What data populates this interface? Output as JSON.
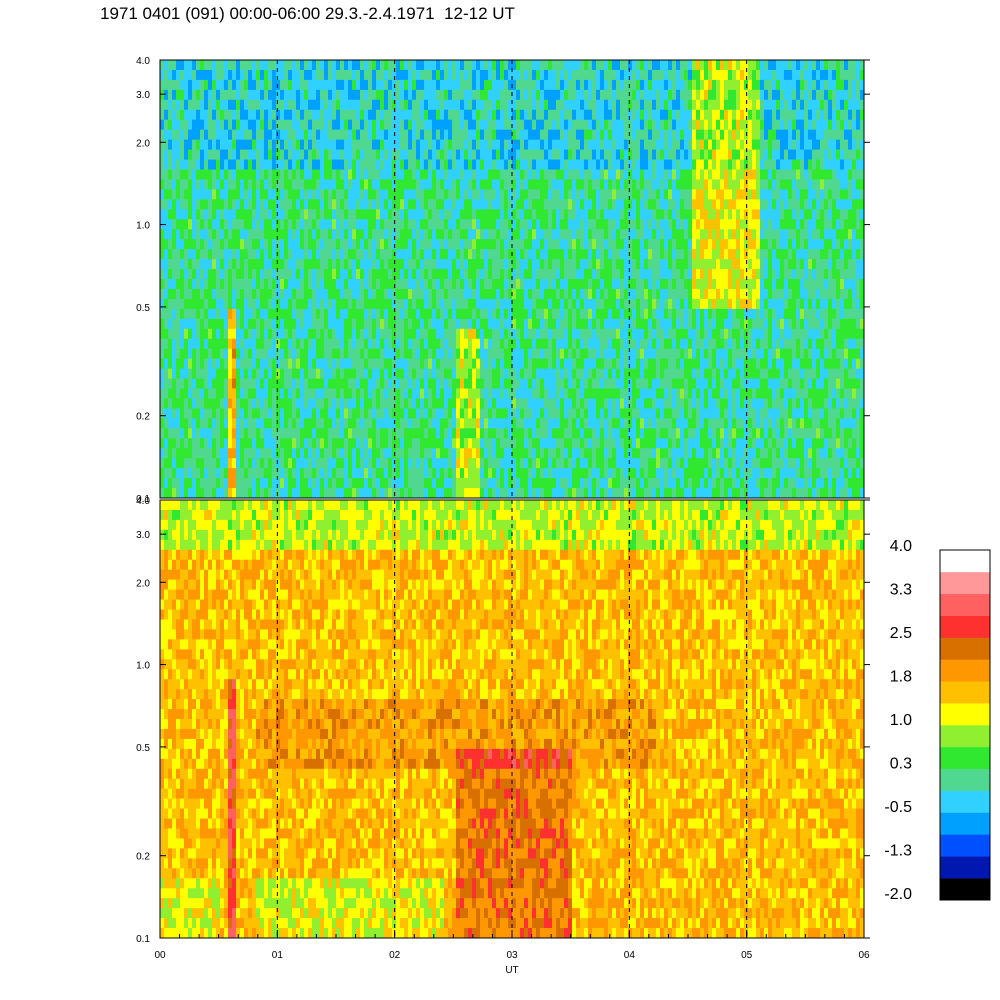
{
  "title": "1971 0401 (091) 00:00-06:00 29.3.-2.4.1971  12-12 UT",
  "chart_data": {
    "type": "heatmap",
    "xlabel": "UT",
    "x_ticks": [
      "00",
      "01",
      "02",
      "03",
      "04",
      "05",
      "06"
    ],
    "xlim": [
      0,
      6
    ],
    "yscale": "log",
    "panels": [
      {
        "name": "",
        "ylim": [
          0.1,
          4.0
        ],
        "y_ticks": [
          0.1,
          0.2,
          0.5,
          1.0,
          2.0,
          3.0,
          4.0
        ],
        "y_tick_labels": [
          "0.1",
          "0.2",
          "0.5",
          "1.0",
          "2.0",
          "3.0",
          "4.0"
        ],
        "base_level": 0.1
      },
      {
        "name": "",
        "ylim": [
          0.1,
          4.0
        ],
        "y_ticks": [
          0.1,
          0.2,
          0.5,
          1.0,
          2.0,
          3.0,
          4.0
        ],
        "y_tick_labels": [
          "0.1",
          "0.2",
          "0.5",
          "1.0",
          "2.0",
          "3.0",
          "4.0"
        ],
        "base_level": 1.6
      }
    ],
    "hour_gridlines": [
      1,
      2,
      3,
      4,
      5
    ],
    "colorbar": {
      "labels": [
        "4.0",
        "3.3",
        "2.5",
        "1.8",
        "1.0",
        "0.3",
        "-0.5",
        "-1.3",
        "-2.0"
      ],
      "range": [
        -2.0,
        4.0
      ],
      "colors": [
        "#000000",
        "#0018b0",
        "#0050ff",
        "#00a0ff",
        "#30d0ff",
        "#50d890",
        "#30e830",
        "#90f030",
        "#ffff00",
        "#ffc000",
        "#ff9800",
        "#d87000",
        "#ff3030",
        "#ff6060",
        "#ff9898",
        "#ffffff"
      ]
    }
  }
}
